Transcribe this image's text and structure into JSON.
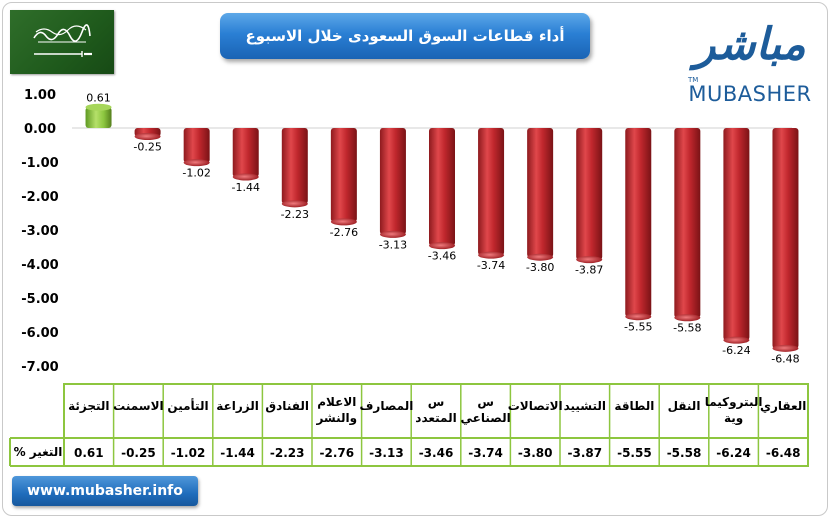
{
  "title": "أداء قطاعات السوق السعودى خلال الاسبوع",
  "logo": {
    "arabic": "مباشر",
    "english": "MUBASHER",
    "tm": "TM"
  },
  "website": "www.mubasher.info",
  "flag_inscription": "لا إله إلا الله محمد رسول الله",
  "table_row_label": "التغير %",
  "colors": {
    "positive_bar": "#8cc63f",
    "negative_bar": "#c0272d",
    "table_border": "#8dc63f",
    "title_bg": "#2a7fd4",
    "brand": "#1d5c9a"
  },
  "chart_data": {
    "type": "bar",
    "title": "أداء قطاعات السوق السعودى خلال الاسبوع",
    "xlabel": "",
    "ylabel": "",
    "ylim": [
      -7.0,
      1.0
    ],
    "yticks": [
      "1.00",
      "0.00",
      "-1.00",
      "-2.00",
      "-3.00",
      "-4.00",
      "-5.00",
      "-6.00",
      "-7.00"
    ],
    "grid": false,
    "categories": [
      "التجزئة",
      "الاسمنت",
      "التأمين",
      "الزراعة",
      "الفنادق",
      "الاعلام والنشر",
      "المصارف",
      "س المتعدد",
      "س الصناعي",
      "الاتصالات",
      "التشييد",
      "الطاقة",
      "النقل",
      "البتروكيما وية",
      "العقاري"
    ],
    "values": [
      0.61,
      -0.25,
      -1.02,
      -1.44,
      -2.23,
      -2.76,
      -3.13,
      -3.46,
      -3.74,
      -3.8,
      -3.87,
      -5.55,
      -5.58,
      -6.24,
      -6.48
    ],
    "value_labels": [
      "0.61",
      "-0.25",
      "-1.02",
      "-1.44",
      "-2.23",
      "-2.76",
      "-3.13",
      "-3.46",
      "-3.74",
      "-3.80",
      "-3.87",
      "-5.55",
      "-5.58",
      "-6.24",
      "-6.48"
    ]
  }
}
